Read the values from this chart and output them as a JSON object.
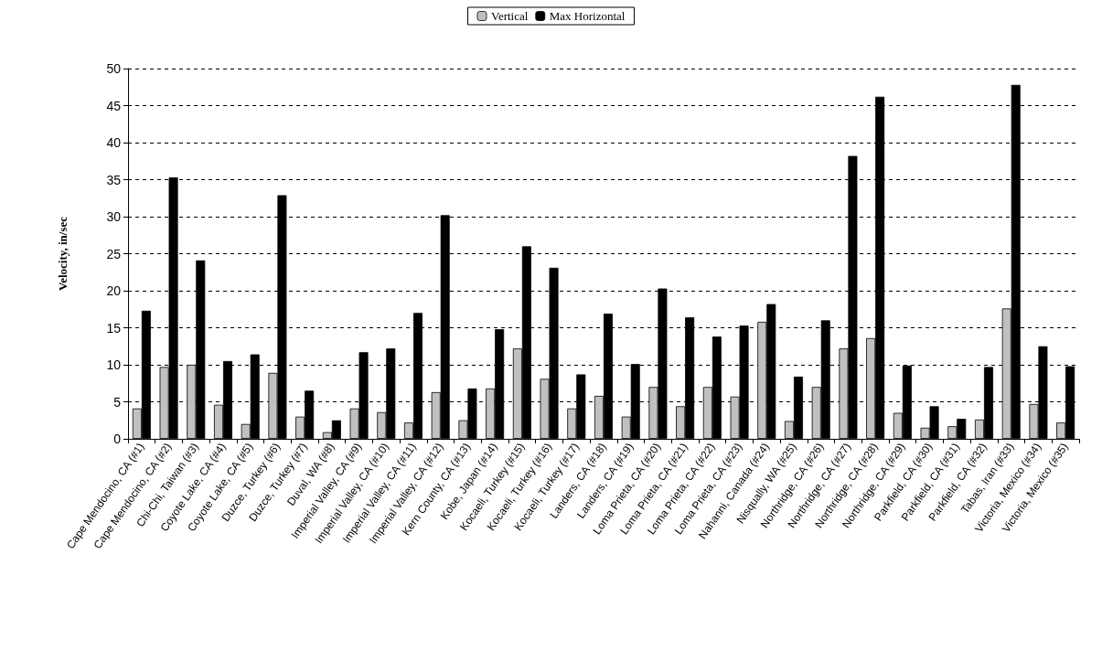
{
  "chart_data": {
    "type": "bar",
    "ylabel": "Velocity, in/sec",
    "categories": [
      "Cape Mendocino, CA (#1)",
      "Cape Mendocino, CA (#2)",
      "Chi-Chi, Taiwan (#3)",
      "Coyote Lake, CA (#4)",
      "Coyote Lake, CA (#5)",
      "Duzce, Turkey (#6)",
      "Duzce, Turkey (#7)",
      "Duval, WA (#8)",
      "Imperial Valley, CA (#9)",
      "Imperial Valley, CA (#10)",
      "Imperial Valley, CA (#11)",
      "Imperial Valley, CA (#12)",
      "Kern County, CA (#13)",
      "Kobe, Japan (#14)",
      "Kocaeli, Turkey (#15)",
      "Kocaeli, Turkey (#16)",
      "Kocaeli, Turkey (#17)",
      "Landers, CA (#18)",
      "Landers, CA (#19)",
      "Loma Prieta, CA (#20)",
      "Loma Prieta, CA (#21)",
      "Loma Prieta, CA (#22)",
      "Loma Prieta, CA (#23)",
      "Nahanni, Canada (#24)",
      "Nisqually, WA (#25)",
      "Northridge, CA (#26)",
      "Northridge, CA (#27)",
      "Northridge, CA (#28)",
      "Northridge, CA (#29)",
      "Parkfield, CA (#30)",
      "Parkfield, CA (#31)",
      "Parkfield, CA (#32)",
      "Tabas, Iran (#33)",
      "Victoria, Mexico (#34)",
      "Victoria, Mexico (#35)"
    ],
    "series": [
      {
        "name": "Vertical",
        "color": "#c0c0c0",
        "values": [
          4.1,
          9.7,
          10,
          4.6,
          2,
          8.9,
          3,
          0.9,
          4.1,
          3.6,
          2.2,
          6.3,
          2.5,
          6.8,
          12.2,
          8.1,
          4.1,
          5.8,
          3,
          7,
          4.4,
          7,
          5.7,
          15.8,
          2.4,
          7,
          12.2,
          13.6,
          3.5,
          1.5,
          1.7,
          2.6,
          17.6,
          4.7,
          2.2
        ]
      },
      {
        "name": "Max Horizontal",
        "color": "#000000",
        "values": [
          17.3,
          35.3,
          24.1,
          10.5,
          11.4,
          32.9,
          6.5,
          2.5,
          11.7,
          12.2,
          17,
          30.2,
          6.8,
          14.8,
          26,
          23.1,
          8.7,
          16.9,
          10.1,
          20.3,
          16.4,
          13.8,
          15.3,
          18.2,
          8.4,
          16,
          38.2,
          46.2,
          9.9,
          4.4,
          2.7,
          9.7,
          47.8,
          12.5,
          9.8
        ]
      }
    ],
    "ylim": [
      0,
      50
    ],
    "yticks": [
      0,
      5,
      10,
      15,
      20,
      25,
      30,
      35,
      40,
      45,
      50
    ],
    "grid": "y",
    "legend": "top"
  }
}
